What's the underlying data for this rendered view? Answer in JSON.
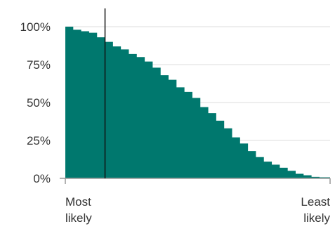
{
  "chart_data": {
    "type": "area",
    "title": "",
    "xlabel": "",
    "ylabel": "",
    "ylim": [
      0,
      100
    ],
    "yticks": [
      {
        "value": 0,
        "label": "0%"
      },
      {
        "value": 25,
        "label": "25%"
      },
      {
        "value": 50,
        "label": "50%"
      },
      {
        "value": 75,
        "label": "75%"
      },
      {
        "value": 100,
        "label": "100%"
      }
    ],
    "x_labels": {
      "left": [
        "Most",
        "likely"
      ],
      "right": [
        "Least",
        "likely"
      ]
    },
    "grid": true,
    "legend": "none",
    "marker_x": 15,
    "x": [
      0,
      3,
      6,
      9,
      12,
      15,
      18,
      21,
      24,
      27,
      30,
      33,
      36,
      39,
      42,
      45,
      48,
      51,
      54,
      57,
      60,
      63,
      66,
      69,
      72,
      75,
      78,
      81,
      84,
      87,
      90,
      93,
      96,
      100
    ],
    "values": [
      100,
      98,
      97,
      96,
      93,
      90,
      87,
      85,
      82,
      80,
      77,
      73,
      68,
      65,
      60,
      57,
      53,
      47,
      43,
      38,
      33,
      27,
      23,
      18,
      14,
      11,
      9,
      7,
      5,
      3,
      2,
      1,
      0.7,
      0.5
    ],
    "series": [
      {
        "values_ref": "values",
        "color": "#00786e"
      }
    ],
    "colors": {
      "area": "#00786e",
      "grid": "#dddddd",
      "axis": "#999999",
      "marker": "#111111"
    }
  }
}
